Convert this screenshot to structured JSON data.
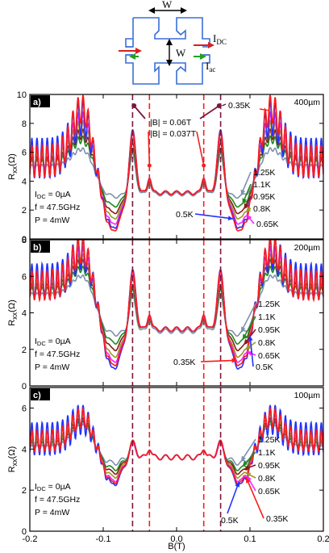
{
  "schematic": {
    "width_top": "W",
    "width_mid": "W",
    "idc_label": "I",
    "idc_sub": "DC",
    "iac_label": "I",
    "iac_sub": "ac"
  },
  "chart_data": [
    {
      "type": "line",
      "panel_label": "a)",
      "corner_text": "400µm",
      "xlabel": "B(T)",
      "ylabel": "R",
      "ylabel_sub": "xx",
      "ylabel_unit": "(Ω)",
      "xlim": [
        -0.2,
        0.2
      ],
      "ylim": [
        0,
        10
      ],
      "x_ticks": [
        "-0.2",
        "-0.1",
        "0.0",
        "0.1",
        "0.2"
      ],
      "y_ticks": [
        "0",
        "2",
        "4",
        "6",
        "8",
        "10"
      ],
      "conditions": [
        "I",
        "DC",
        " = 0µA",
        "f = 47.5GHz",
        "P = 4mW"
      ],
      "vlines": [
        -0.06,
        -0.037,
        0.037,
        0.06
      ],
      "vline_colors": [
        "#7b1640",
        "#ee2222",
        "#ee2222",
        "#7b1640"
      ],
      "annotations": [
        "|B| = 0.06T",
        "|B| = 0.037T",
        "0.35K"
      ],
      "legend_labels": [
        "1.25K",
        "1.1K",
        "0.95K",
        "0.8K",
        "0.65K",
        "0.5K"
      ],
      "series": [
        {
          "name": "0.35K",
          "color": "#ff1a1a",
          "valley": 0.4,
          "shoulder": 5.4,
          "peak": 9.2,
          "spike": 7.5,
          "plateau": 3.2,
          "osc": 1.1
        },
        {
          "name": "0.5K",
          "color": "#2233ff",
          "valley": 0.6,
          "shoulder": 5.6,
          "peak": 8.6,
          "spike": 7.6,
          "plateau": 3.2,
          "osc": 1.4
        },
        {
          "name": "0.65K",
          "color": "#ff22ff",
          "valley": 0.9,
          "shoulder": 5.5,
          "peak": 8.2,
          "spike": 7.3,
          "plateau": 3.2,
          "osc": 0.8
        },
        {
          "name": "0.8K",
          "color": "#9a9a22",
          "valley": 1.3,
          "shoulder": 5.4,
          "peak": 7.8,
          "spike": 7.0,
          "plateau": 3.2,
          "osc": 0.6
        },
        {
          "name": "0.95K",
          "color": "#8a1a1a",
          "valley": 1.7,
          "shoulder": 5.3,
          "peak": 7.4,
          "spike": 6.6,
          "plateau": 3.2,
          "osc": 0.4
        },
        {
          "name": "1.1K",
          "color": "#1e8a1e",
          "valley": 2.2,
          "shoulder": 5.2,
          "peak": 7.0,
          "spike": 6.2,
          "plateau": 3.2,
          "osc": 0.3
        },
        {
          "name": "1.25K",
          "color": "#7f8faf",
          "valley": 2.9,
          "shoulder": 5.0,
          "peak": 6.3,
          "spike": 5.8,
          "plateau": 3.1,
          "osc": 0.15
        }
      ]
    },
    {
      "type": "line",
      "panel_label": "b)",
      "corner_text": "200µm",
      "xlabel": "B(T)",
      "ylabel": "R",
      "ylabel_sub": "xx",
      "ylabel_unit": "(Ω)",
      "xlim": [
        -0.2,
        0.2
      ],
      "ylim": [
        0,
        8
      ],
      "x_ticks": [
        "-0.2",
        "-0.1",
        "0.0",
        "0.1",
        "0.2"
      ],
      "y_ticks": [
        "0",
        "2",
        "4",
        "6",
        "8"
      ],
      "conditions": [
        "I",
        "DC",
        " = 0µA",
        "f = 47.5GHz",
        "P = 4mW"
      ],
      "vlines": [
        -0.06,
        -0.037,
        0.037,
        0.06
      ],
      "vline_colors": [
        "#7b1640",
        "#ee2222",
        "#ee2222",
        "#7b1640"
      ],
      "annotations": [],
      "legend_labels": [
        "1.25K",
        "1.1K",
        "0.95K",
        "0.8K",
        "0.65K",
        "0.35K",
        "0.5K"
      ],
      "series": [
        {
          "name": "0.35K",
          "color": "#ff1a1a",
          "valley": 1.0,
          "shoulder": 5.5,
          "peak": 7.6,
          "spike": 6.3,
          "plateau": 3.1,
          "osc": 0.8
        },
        {
          "name": "0.5K",
          "color": "#2233ff",
          "valley": 0.8,
          "shoulder": 5.7,
          "peak": 7.4,
          "spike": 6.4,
          "plateau": 3.1,
          "osc": 1.0
        },
        {
          "name": "0.65K",
          "color": "#ff22ff",
          "valley": 1.2,
          "shoulder": 5.5,
          "peak": 7.2,
          "spike": 6.1,
          "plateau": 3.1,
          "osc": 0.6
        },
        {
          "name": "0.8K",
          "color": "#9a9a22",
          "valley": 1.5,
          "shoulder": 5.4,
          "peak": 7.0,
          "spike": 5.8,
          "plateau": 3.1,
          "osc": 0.4
        },
        {
          "name": "0.95K",
          "color": "#8a1a1a",
          "valley": 1.9,
          "shoulder": 5.3,
          "peak": 6.8,
          "spike": 5.5,
          "plateau": 3.1,
          "osc": 0.3
        },
        {
          "name": "1.1K",
          "color": "#1e8a1e",
          "valley": 2.3,
          "shoulder": 5.2,
          "peak": 6.5,
          "spike": 5.2,
          "plateau": 3.1,
          "osc": 0.2
        },
        {
          "name": "1.25K",
          "color": "#7f8faf",
          "valley": 2.8,
          "shoulder": 5.0,
          "peak": 6.1,
          "spike": 4.9,
          "plateau": 3.0,
          "osc": 0.1
        }
      ]
    },
    {
      "type": "line",
      "panel_label": "c)",
      "corner_text": "100µm",
      "xlabel": "B(T)",
      "ylabel": "R",
      "ylabel_sub": "xx",
      "ylabel_unit": "(Ω)",
      "xlim": [
        -0.2,
        0.2
      ],
      "ylim": [
        0,
        7
      ],
      "x_ticks": [
        "-0.2",
        "-0.1",
        "0.0",
        "0.1",
        "0.2"
      ],
      "y_ticks": [
        "0",
        "2",
        "4",
        "6"
      ],
      "conditions": [
        "I",
        "DC",
        " = 0µA",
        "f = 47.5GHz",
        "P = 4mW"
      ],
      "vlines": [
        -0.06,
        -0.037,
        0.037,
        0.06
      ],
      "vline_colors": [
        "#7b1640",
        "#ee2222",
        "#ee2222",
        "#7b1640"
      ],
      "annotations": [],
      "legend_labels": [
        "1.25K",
        "1.1K",
        "0.95K",
        "0.8K",
        "0.65K",
        "0.35K",
        "0.5K"
      ],
      "series": [
        {
          "name": "0.35K",
          "color": "#ff1a1a",
          "valley": 2.3,
          "shoulder": 4.4,
          "peak": 5.6,
          "spike": 4.4,
          "plateau": 3.6,
          "osc": 0.5
        },
        {
          "name": "0.5K",
          "color": "#2233ff",
          "valley": 2.2,
          "shoulder": 4.5,
          "peak": 5.5,
          "spike": 4.4,
          "plateau": 3.6,
          "osc": 0.8
        },
        {
          "name": "0.65K",
          "color": "#ff22ff",
          "valley": 2.4,
          "shoulder": 4.4,
          "peak": 5.6,
          "spike": 4.3,
          "plateau": 3.6,
          "osc": 0.5
        },
        {
          "name": "0.8K",
          "color": "#9a9a22",
          "valley": 2.6,
          "shoulder": 4.3,
          "peak": 5.5,
          "spike": 4.3,
          "plateau": 3.6,
          "osc": 0.3
        },
        {
          "name": "0.95K",
          "color": "#8a1a1a",
          "valley": 2.8,
          "shoulder": 4.3,
          "peak": 5.4,
          "spike": 4.3,
          "plateau": 3.6,
          "osc": 0.2
        },
        {
          "name": "1.1K",
          "color": "#1e8a1e",
          "valley": 3.0,
          "shoulder": 4.2,
          "peak": 5.3,
          "spike": 4.3,
          "plateau": 3.6,
          "osc": 0.15
        },
        {
          "name": "1.25K",
          "color": "#7f8faf",
          "valley": 3.3,
          "shoulder": 4.1,
          "peak": 5.2,
          "spike": 4.2,
          "plateau": 3.6,
          "osc": 0.1
        }
      ]
    }
  ]
}
